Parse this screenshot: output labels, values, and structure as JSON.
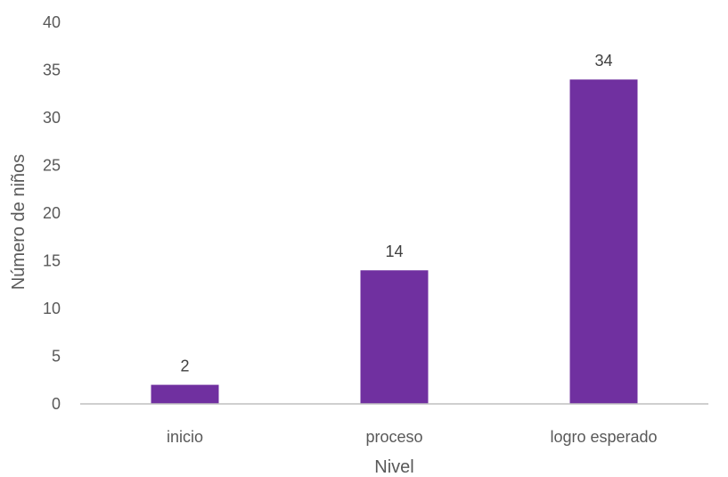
{
  "chart_data": {
    "type": "bar",
    "categories": [
      "inicio",
      "proceso",
      "logro esperado"
    ],
    "values": [
      2,
      14,
      34
    ],
    "data_labels": [
      "2",
      "14",
      "34"
    ],
    "title": "",
    "xlabel": "Nivel",
    "ylabel": "Número de niños",
    "ylim": [
      0,
      40
    ],
    "yticks": [
      0,
      5,
      10,
      15,
      20,
      25,
      30,
      35,
      40
    ],
    "ytick_labels": [
      "0",
      "5",
      "10",
      "15",
      "20",
      "25",
      "30",
      "35",
      "40"
    ],
    "grid": false,
    "legend": "none",
    "colors": {
      "bar": "#7030a0",
      "axis": "#bfbfbf",
      "text": "#595959"
    }
  }
}
